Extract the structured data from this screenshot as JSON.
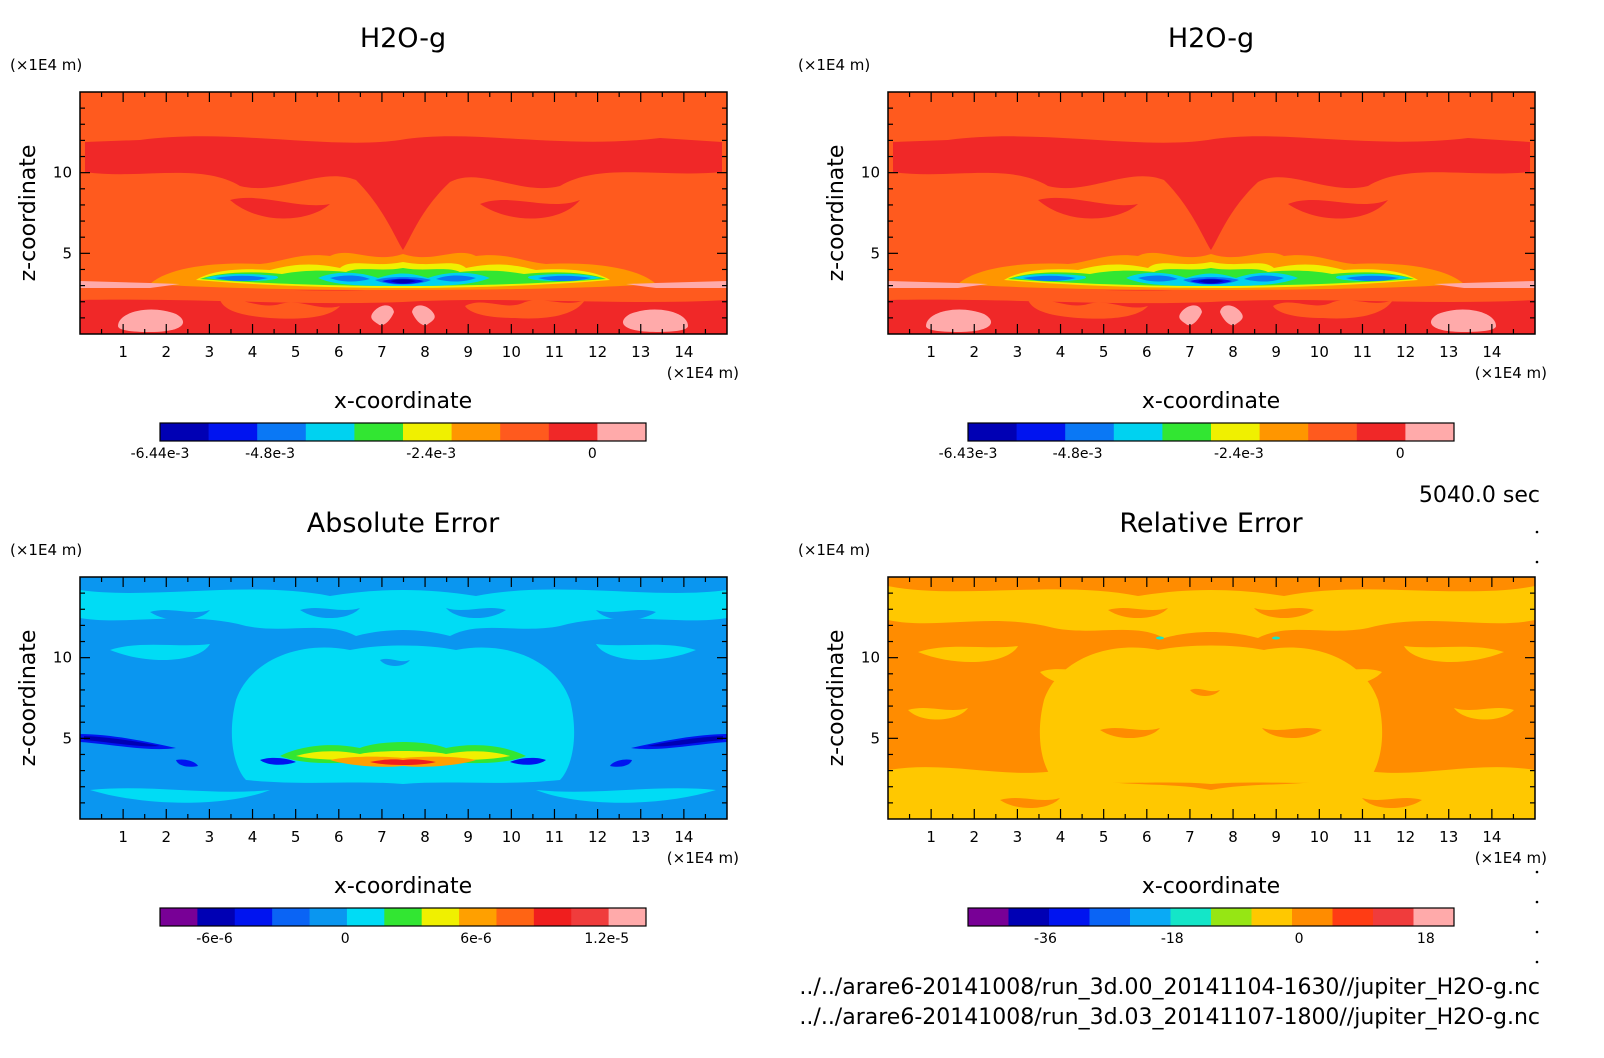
{
  "chart_data": [
    {
      "type": "heatmap",
      "title": "H2O-g",
      "xlabel": "x-coordinate",
      "ylabel": "z-coordinate",
      "x_unit": "(×1E4 m)",
      "y_unit": "(×1E4 m)",
      "xlim": [
        0,
        15
      ],
      "ylim": [
        0,
        15
      ],
      "x_ticks": [
        1,
        2,
        3,
        4,
        5,
        6,
        7,
        8,
        9,
        10,
        11,
        12,
        13,
        14
      ],
      "y_ticks": [
        5,
        10
      ],
      "background_color": "#ff5a1e",
      "colorbar": {
        "range": [
          -0.00644,
          0.0008
        ],
        "labels": [
          {
            "value": -0.00644,
            "text": "-6.44e-3"
          },
          {
            "value": -0.0048,
            "text": "-4.8e-3"
          },
          {
            "value": -0.0024,
            "text": "-2.4e-3"
          },
          {
            "value": 0,
            "text": "0"
          }
        ],
        "colors": [
          "#0000b4",
          "#0014f0",
          "#0a78f5",
          "#00d2f0",
          "#32e632",
          "#f0f000",
          "#ff9600",
          "#ff5a1e",
          "#f02828",
          "#ffaaaa"
        ]
      }
    },
    {
      "type": "heatmap",
      "title": "H2O-g",
      "xlabel": "x-coordinate",
      "ylabel": "z-coordinate",
      "x_unit": "(×1E4 m)",
      "y_unit": "(×1E4 m)",
      "xlim": [
        0,
        15
      ],
      "ylim": [
        0,
        15
      ],
      "x_ticks": [
        1,
        2,
        3,
        4,
        5,
        6,
        7,
        8,
        9,
        10,
        11,
        12,
        13,
        14
      ],
      "y_ticks": [
        5,
        10
      ],
      "background_color": "#ff5a1e",
      "colorbar": {
        "range": [
          -0.00643,
          0.0008
        ],
        "labels": [
          {
            "value": -0.00643,
            "text": "-6.43e-3"
          },
          {
            "value": -0.0048,
            "text": "-4.8e-3"
          },
          {
            "value": -0.0024,
            "text": "-2.4e-3"
          },
          {
            "value": 0,
            "text": "0"
          }
        ],
        "colors": [
          "#0000b4",
          "#0014f0",
          "#0a78f5",
          "#00d2f0",
          "#32e632",
          "#f0f000",
          "#ff9600",
          "#ff5a1e",
          "#f02828",
          "#ffaaaa"
        ]
      }
    },
    {
      "type": "heatmap",
      "title": "Absolute Error",
      "xlabel": "x-coordinate",
      "ylabel": "z-coordinate",
      "x_unit": "(×1E4 m)",
      "y_unit": "(×1E4 m)",
      "xlim": [
        0,
        15
      ],
      "ylim": [
        0,
        15
      ],
      "x_ticks": [
        1,
        2,
        3,
        4,
        5,
        6,
        7,
        8,
        9,
        10,
        11,
        12,
        13,
        14
      ],
      "y_ticks": [
        5,
        10
      ],
      "background_color": "#0a96f0",
      "colorbar": {
        "range": [
          -8.5e-06,
          1.38e-05
        ],
        "labels": [
          {
            "value": -6e-06,
            "text": "-6e-6"
          },
          {
            "value": 0,
            "text": "0"
          },
          {
            "value": 6e-06,
            "text": "6e-6"
          },
          {
            "value": 1.2e-05,
            "text": "1.2e-5"
          }
        ],
        "colors": [
          "#780096",
          "#0000b4",
          "#0014f0",
          "#0a64f5",
          "#0a96f0",
          "#00dcf5",
          "#32e632",
          "#f0f000",
          "#ffa000",
          "#ff6414",
          "#f01e1e",
          "#f03c3c",
          "#ffaaaa"
        ]
      }
    },
    {
      "type": "heatmap",
      "title": "Relative Error",
      "xlabel": "x-coordinate",
      "ylabel": "z-coordinate",
      "x_unit": "(×1E4 m)",
      "y_unit": "(×1E4 m)",
      "xlim": [
        0,
        15
      ],
      "ylim": [
        0,
        15
      ],
      "x_ticks": [
        1,
        2,
        3,
        4,
        5,
        6,
        7,
        8,
        9,
        10,
        11,
        12,
        13,
        14
      ],
      "y_ticks": [
        5,
        10
      ],
      "background_color": "#ff8c00",
      "colorbar": {
        "range": [
          -47,
          22
        ],
        "labels": [
          {
            "value": -36,
            "text": "-36"
          },
          {
            "value": -18,
            "text": "-18"
          },
          {
            "value": 0,
            "text": "0"
          },
          {
            "value": 18,
            "text": "18"
          }
        ],
        "colors": [
          "#780096",
          "#0000b4",
          "#0014f0",
          "#0a64f5",
          "#0aaaf5",
          "#14e6c8",
          "#96e614",
          "#ffc800",
          "#ff8c00",
          "#ff3c14",
          "#f03c3c",
          "#ffaaaa"
        ]
      }
    }
  ],
  "info": {
    "time": "5040.0 sec",
    "file1": "../../arare6-20141008/run_3d.00_20141104-1630//jupiter_H2O-g.nc",
    "file2": "../../arare6-20141008/run_3d.03_20141107-1800//jupiter_H2O-g.nc"
  }
}
